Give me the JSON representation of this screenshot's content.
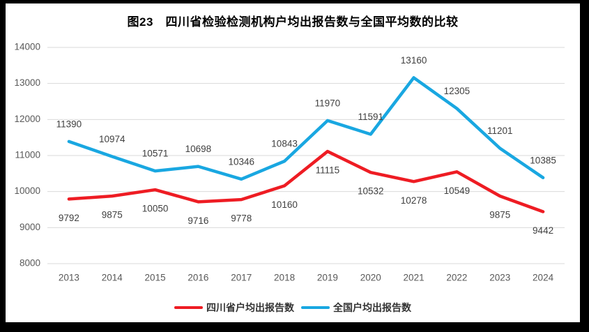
{
  "title": "图23　四川省检验检测机构户均出报告数与全国平均数的比较",
  "frame": {
    "border_color": "#000000",
    "background": "#ffffff",
    "grid_color": "#d9d9d9",
    "axis_label_color": "#595959",
    "data_label_color": "#404040"
  },
  "chart_data": {
    "type": "line",
    "title": "图23　四川省检验检测机构户均出报告数与全国平均数的比较",
    "categories": [
      "2013",
      "2014",
      "2015",
      "2016",
      "2017",
      "2018",
      "2019",
      "2020",
      "2021",
      "2022",
      "2023",
      "2024"
    ],
    "series": [
      {
        "name": "四川省户均出报告数",
        "color": "#ee1c23",
        "label_position": "below",
        "values": [
          9792,
          9875,
          10050,
          9716,
          9778,
          10160,
          11115,
          10532,
          10278,
          10549,
          9875,
          9442
        ]
      },
      {
        "name": "全国户均出报告数",
        "color": "#19a7e1",
        "label_position": "above",
        "values": [
          11390,
          10974,
          10571,
          10698,
          10346,
          10843,
          11970,
          11591,
          13160,
          12305,
          11201,
          10385
        ]
      }
    ],
    "xlabel": "",
    "ylabel": "",
    "ylim": [
      8000,
      14000
    ],
    "yticks": [
      8000,
      9000,
      10000,
      11000,
      12000,
      13000,
      14000
    ],
    "grid": true,
    "legend_position": "bottom",
    "data_labels": true
  }
}
